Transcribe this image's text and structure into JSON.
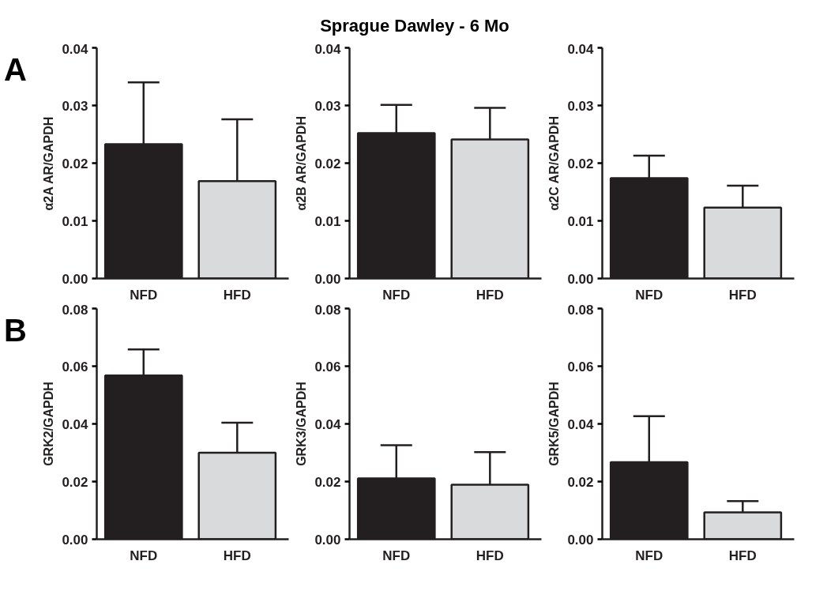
{
  "chart_data": [
    {
      "type": "bar",
      "annotations": [
        "A"
      ],
      "ylabel": "α2A AR/GAPDH",
      "categories": [
        "NFD",
        "HFD"
      ],
      "series": [
        {
          "colors": [
            "#231f20",
            "#d9dadc"
          ],
          "values": [
            0.0233,
            0.0169
          ],
          "errors": [
            [
              0.0233,
              0.034
            ],
            [
              0.0169,
              0.0276
            ]
          ]
        }
      ],
      "ylim": [
        0,
        0.04
      ],
      "yticks": [
        {
          "value": 0,
          "label": "0.00"
        },
        {
          "value": 0.01,
          "label": "0.01"
        },
        {
          "value": 0.02,
          "label": "0.02"
        },
        {
          "value": 0.03,
          "label": "0.03"
        },
        {
          "value": 0.04,
          "label": "0.04"
        }
      ]
    },
    {
      "type": "bar",
      "title": "Sprague Dawley - 6 Mo",
      "ylabel": "α2B AR/GAPDH",
      "categories": [
        "NFD",
        "HFD"
      ],
      "series": [
        {
          "colors": [
            "#231f20",
            "#d9dadc"
          ],
          "values": [
            0.0252,
            0.0241
          ],
          "errors": [
            [
              0.0252,
              0.0301
            ],
            [
              0.0241,
              0.0296
            ]
          ]
        }
      ],
      "ylim": [
        0,
        0.04
      ],
      "yticks": [
        {
          "value": 0,
          "label": "0.00"
        },
        {
          "value": 0.01,
          "label": "0.01"
        },
        {
          "value": 0.02,
          "label": "0.02"
        },
        {
          "value": 0.03,
          "label": "0.03"
        },
        {
          "value": 0.04,
          "label": "0.04"
        }
      ]
    },
    {
      "type": "bar",
      "ylabel": "α2C AR/GAPDH",
      "categories": [
        "NFD",
        "HFD"
      ],
      "series": [
        {
          "colors": [
            "#231f20",
            "#d9dadc"
          ],
          "values": [
            0.0174,
            0.0123
          ],
          "errors": [
            [
              0.0174,
              0.0213
            ],
            [
              0.0123,
              0.0161
            ]
          ]
        }
      ],
      "ylim": [
        0,
        0.04
      ],
      "yticks": [
        {
          "value": 0,
          "label": "0.00"
        },
        {
          "value": 0.01,
          "label": "0.01"
        },
        {
          "value": 0.02,
          "label": "0.02"
        },
        {
          "value": 0.03,
          "label": "0.03"
        },
        {
          "value": 0.04,
          "label": "0.04"
        }
      ]
    },
    {
      "type": "bar",
      "annotations": [
        "B"
      ],
      "ylabel": "GRK2/GAPDH",
      "categories": [
        "NFD",
        "HFD"
      ],
      "series": [
        {
          "colors": [
            "#231f20",
            "#d9dadc"
          ],
          "values": [
            0.0568,
            0.03
          ],
          "errors": [
            [
              0.0568,
              0.0658
            ],
            [
              0.03,
              0.0404
            ]
          ]
        }
      ],
      "ylim": [
        0,
        0.08
      ],
      "yticks": [
        {
          "value": 0,
          "label": "0.00"
        },
        {
          "value": 0.02,
          "label": "0.02"
        },
        {
          "value": 0.04,
          "label": "0.04"
        },
        {
          "value": 0.06,
          "label": "0.06"
        },
        {
          "value": 0.08,
          "label": "0.08"
        }
      ]
    },
    {
      "type": "bar",
      "ylabel": "GRK3/GAPDH",
      "categories": [
        "NFD",
        "HFD"
      ],
      "series": [
        {
          "colors": [
            "#231f20",
            "#d9dadc"
          ],
          "values": [
            0.0211,
            0.0189
          ],
          "errors": [
            [
              0.0211,
              0.0326
            ],
            [
              0.0189,
              0.0302
            ]
          ]
        }
      ],
      "ylim": [
        0,
        0.08
      ],
      "yticks": [
        {
          "value": 0,
          "label": "0.00"
        },
        {
          "value": 0.02,
          "label": "0.02"
        },
        {
          "value": 0.04,
          "label": "0.04"
        },
        {
          "value": 0.06,
          "label": "0.06"
        },
        {
          "value": 0.08,
          "label": "0.08"
        }
      ]
    },
    {
      "type": "bar",
      "ylabel": "GRK5/GAPDH",
      "categories": [
        "NFD",
        "HFD"
      ],
      "series": [
        {
          "colors": [
            "#231f20",
            "#d9dadc"
          ],
          "values": [
            0.0267,
            0.0093
          ],
          "errors": [
            [
              0.0267,
              0.0427
            ],
            [
              0.0093,
              0.0132
            ]
          ]
        }
      ],
      "ylim": [
        0,
        0.08
      ],
      "yticks": [
        {
          "value": 0,
          "label": "0.00"
        },
        {
          "value": 0.02,
          "label": "0.02"
        },
        {
          "value": 0.04,
          "label": "0.04"
        },
        {
          "value": 0.06,
          "label": "0.06"
        },
        {
          "value": 0.08,
          "label": "0.08"
        }
      ]
    }
  ]
}
